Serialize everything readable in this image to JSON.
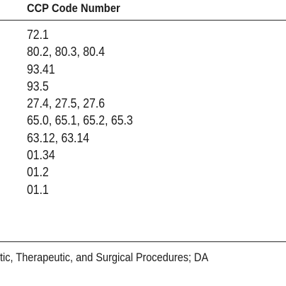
{
  "table": {
    "header": "CCP Code Number",
    "rows": [
      "72.1",
      "80.2, 80.3, 80.4",
      "93.41",
      "93.5",
      "27.4, 27.5, 27.6",
      "65.0, 65.1, 65.2, 65.3",
      "63.12, 63.14",
      "01.34",
      "01.2",
      "01.1"
    ]
  },
  "footnote": "tic, Therapeutic, and Surgical Procedures; DA"
}
